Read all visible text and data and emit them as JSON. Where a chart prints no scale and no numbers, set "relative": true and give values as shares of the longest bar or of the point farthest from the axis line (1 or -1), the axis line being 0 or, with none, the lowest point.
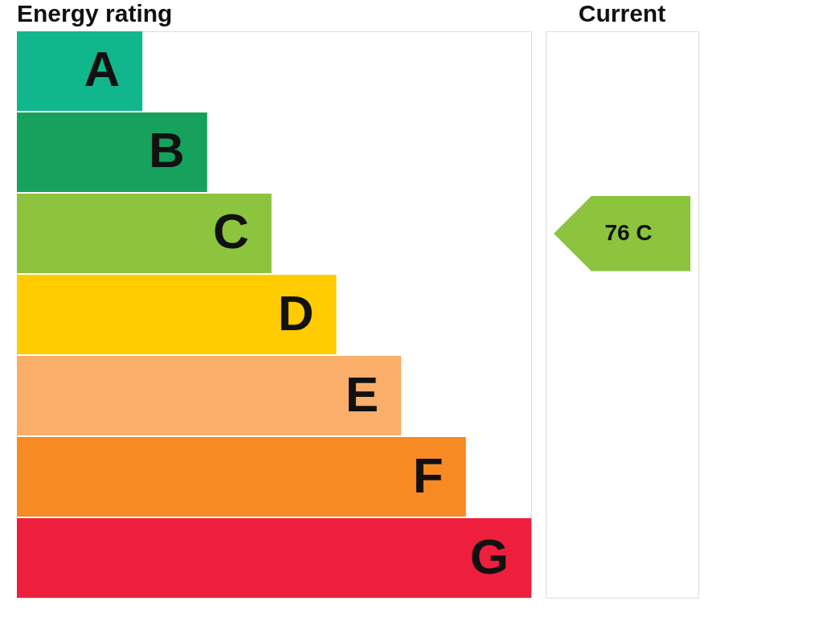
{
  "chart_data": {
    "type": "bar",
    "orientation": "horizontal",
    "relative": true,
    "title": "Energy rating",
    "subtitle": "Current",
    "categories": [
      "A",
      "B",
      "C",
      "D",
      "E",
      "F",
      "G"
    ],
    "values": [
      0.244,
      0.37,
      0.495,
      0.621,
      0.747,
      0.873,
      1
    ],
    "colors": [
      "#12b68c",
      "#16a25c",
      "#8cc43e",
      "#ffcc00",
      "#fbad6a",
      "#f78a22",
      "#ee1f3d"
    ],
    "annotations": [
      "76 C"
    ]
  }
}
